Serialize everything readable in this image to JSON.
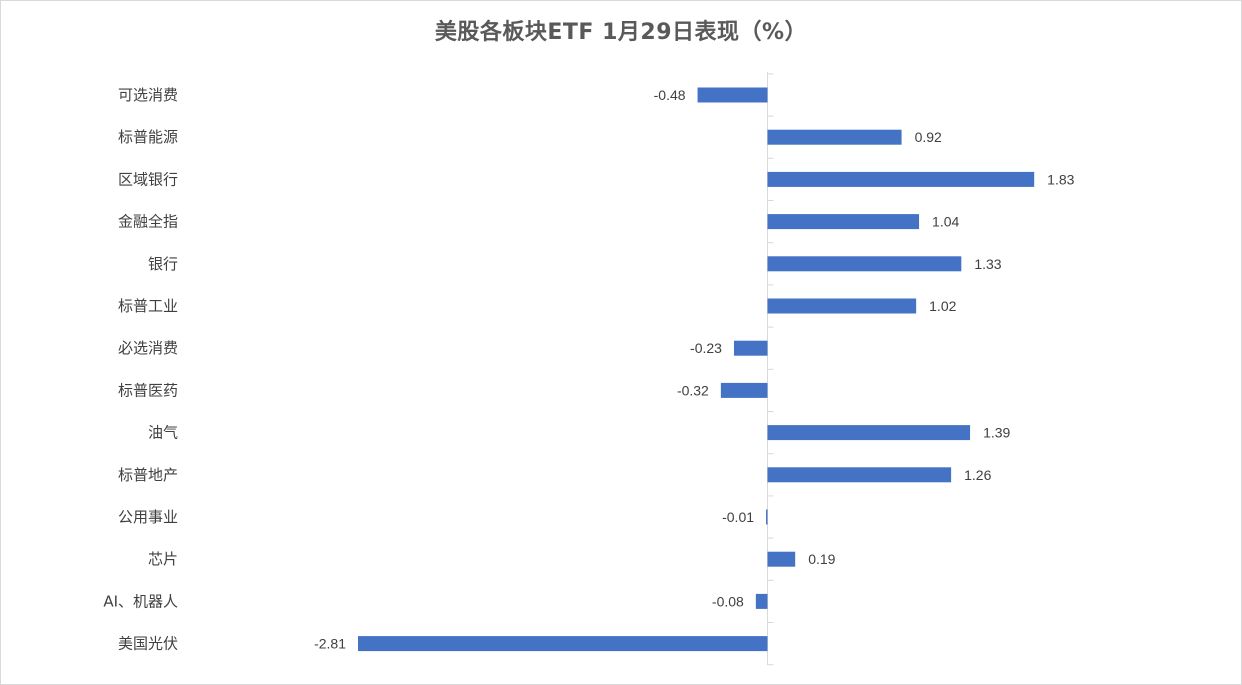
{
  "chart_data": {
    "type": "bar",
    "orientation": "horizontal",
    "title": "美股各板块ETF  1月29日表现（%）",
    "categories": [
      "可选消费",
      "标普能源",
      "区域银行",
      "金融全指",
      "银行",
      "标普工业",
      "必选消费",
      "标普医药",
      "油气",
      "标普地产",
      "公用事业",
      "芯片",
      "AI、机器人",
      "美国光伏"
    ],
    "values": [
      -0.48,
      0.92,
      1.83,
      1.04,
      1.33,
      1.02,
      -0.23,
      -0.32,
      1.39,
      1.26,
      -0.01,
      0.19,
      -0.08,
      -2.81
    ],
    "value_labels": [
      "-0.48",
      "0.92",
      "1.83",
      "1.04",
      "1.33",
      "1.02",
      "-0.23",
      "-0.32",
      "1.39",
      "1.26",
      "-0.01",
      "0.19",
      "-0.08",
      "-2.81"
    ],
    "xlim": [
      -2.81,
      1.83
    ],
    "grid": false,
    "legend": "none",
    "colors": {
      "bar": "#4472C4",
      "axis": "#d9d9d9",
      "text": "#404040",
      "title": "#595959"
    }
  }
}
